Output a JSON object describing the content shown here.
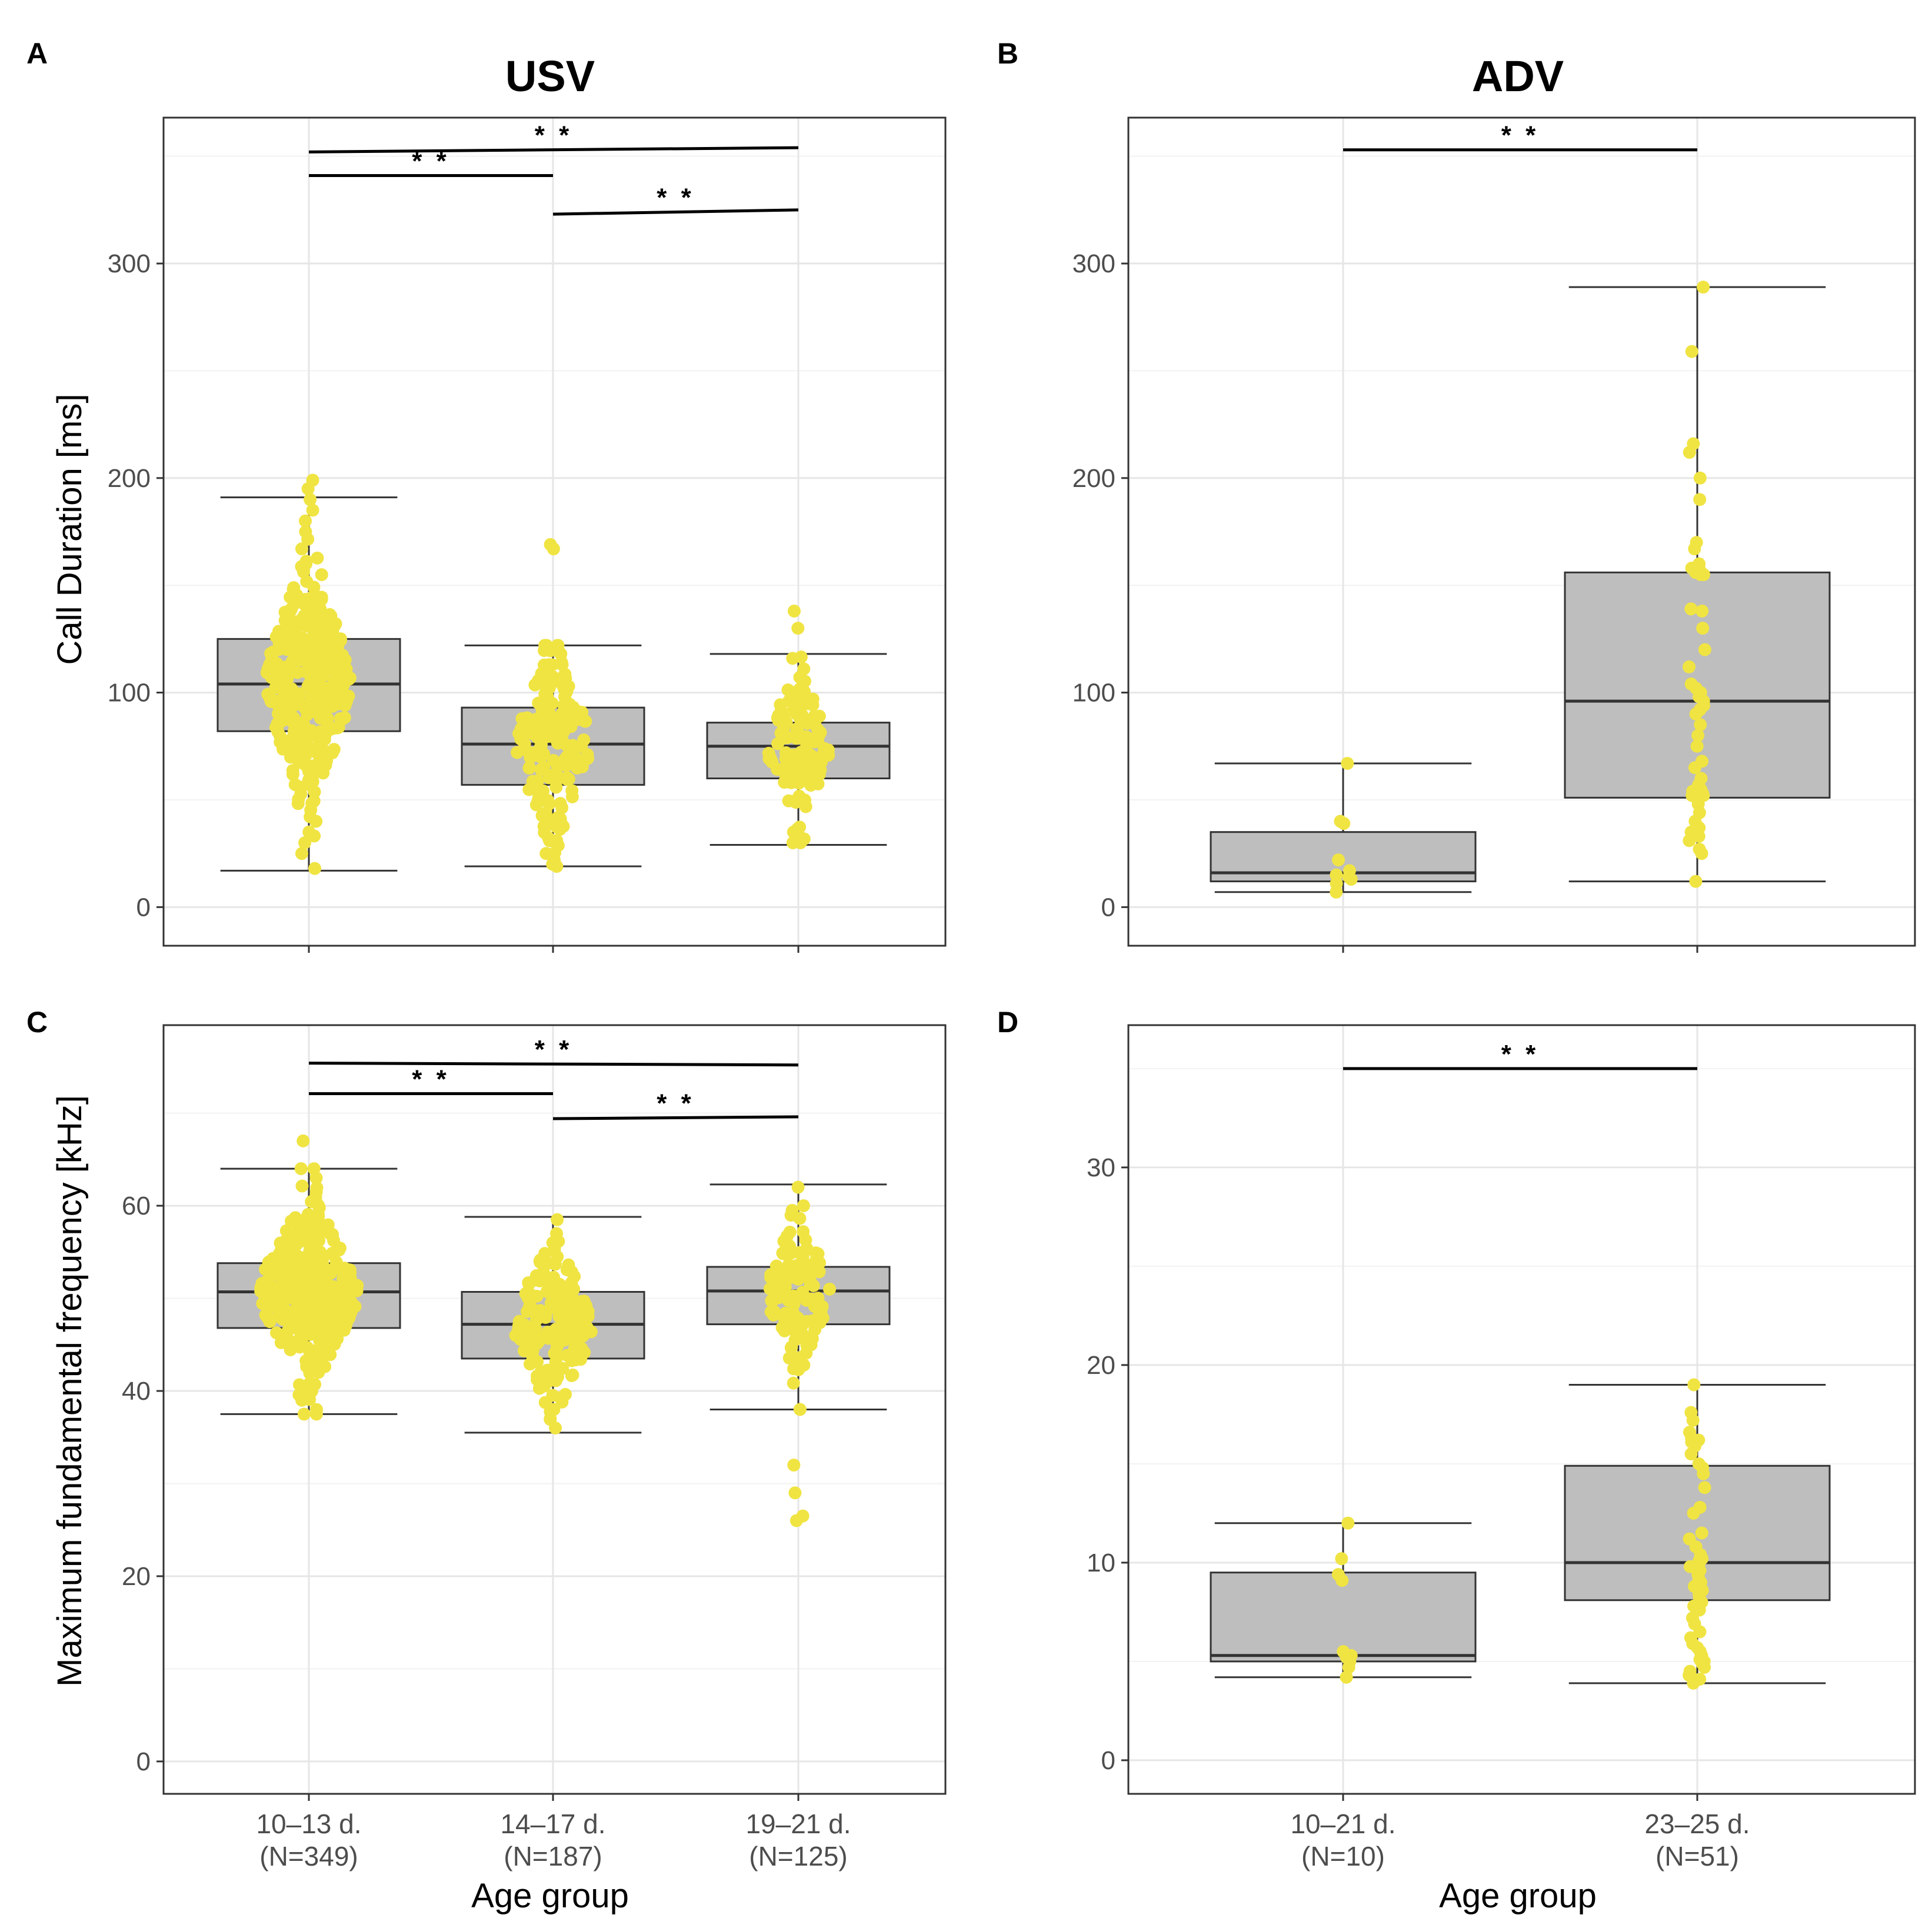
{
  "colors": {
    "points": "#f0e442",
    "box_fill": "#bebebe",
    "outline": "#333333",
    "grid": "#e6e6e6"
  },
  "shared": {
    "x_axis_title": "Age group"
  },
  "chart_data": [
    {
      "panel": "A",
      "title": "USV",
      "type": "boxplot",
      "ylabel": "Call Duration [ms]",
      "ylim": [
        -18,
        368
      ],
      "yticks": [
        0,
        100,
        200,
        300
      ],
      "ytick_labels": [
        "0",
        "100",
        "200",
        "300"
      ],
      "show_x_labels": false,
      "categories": [
        {
          "label": "10–13 d.",
          "n_label": "(N=349)",
          "n": 349,
          "lower_whisker": 17,
          "q1": 82,
          "median": 104,
          "q3": 125,
          "upper_whisker": 191,
          "spread": 0.36,
          "extra_points": [
            199,
            195,
            190,
            185,
            180,
            175,
            167,
            160,
            40,
            35,
            30,
            25,
            18
          ],
          "sd": 27
        },
        {
          "label": "14–17 d.",
          "n_label": "(N=187)",
          "n": 187,
          "lower_whisker": 19,
          "q1": 57,
          "median": 76,
          "q3": 93,
          "upper_whisker": 122,
          "spread": 0.3,
          "extra_points": [
            169,
            167,
            120,
            118,
            20,
            22,
            25
          ],
          "sd": 21
        },
        {
          "label": "19–21 d.",
          "n_label": "(N=125)",
          "n": 125,
          "lower_whisker": 29,
          "q1": 60,
          "median": 75,
          "q3": 86,
          "upper_whisker": 118,
          "spread": 0.26,
          "extra_points": [
            138,
            130,
            32,
            30,
            35
          ],
          "sd": 17
        }
      ],
      "significance": [
        {
          "from": 0,
          "to": 2,
          "y": 352,
          "y_end": 354,
          "label": "* *"
        },
        {
          "from": 0,
          "to": 1,
          "y": 341,
          "y_end": 341,
          "label": "* *"
        },
        {
          "from": 1,
          "to": 2,
          "y": 323,
          "y_end": 325,
          "label": "* *"
        }
      ]
    },
    {
      "panel": "B",
      "title": "ADV",
      "type": "boxplot",
      "ylabel": "",
      "ylim": [
        -18,
        368
      ],
      "yticks": [
        0,
        100,
        200,
        300
      ],
      "ytick_labels": [
        "0",
        "100",
        "200",
        "300"
      ],
      "show_x_labels": false,
      "categories": [
        {
          "label": "10–21 d.",
          "n_label": "(N=10)",
          "n": 10,
          "lower_whisker": 7,
          "q1": 12,
          "median": 16,
          "q3": 35,
          "upper_whisker": 67,
          "spread": 0.0,
          "points": [
            67,
            40,
            39,
            22,
            17,
            15,
            14,
            13,
            11,
            7
          ]
        },
        {
          "label": "23–25 d.",
          "n_label": "(N=51)",
          "n": 51,
          "lower_whisker": 12,
          "q1": 51,
          "median": 96,
          "q3": 156,
          "upper_whisker": 289,
          "spread": 0.0,
          "points": [
            289,
            259,
            216,
            212,
            200,
            190,
            170,
            167,
            160,
            158,
            157,
            157,
            156,
            155,
            155,
            139,
            138,
            130,
            120,
            112,
            104,
            102,
            100,
            98,
            96,
            94,
            92,
            90,
            85,
            80,
            75,
            68,
            65,
            60,
            57,
            55,
            54,
            53,
            52,
            52,
            50,
            48,
            44,
            40,
            37,
            35,
            33,
            31,
            27,
            25,
            12
          ]
        }
      ],
      "significance": [
        {
          "from": 0,
          "to": 1,
          "y": 353,
          "y_end": 353,
          "label": "* *"
        }
      ]
    },
    {
      "panel": "C",
      "title": "",
      "type": "boxplot",
      "ylabel": "Maximum fundamental frequency [kHz]",
      "ylim": [
        -3.5,
        79.5
      ],
      "yticks": [
        0,
        20,
        40,
        60
      ],
      "ytick_labels": [
        "0",
        "20",
        "40",
        "60"
      ],
      "show_x_labels": true,
      "categories": [
        {
          "label": "10–13 d.",
          "n_label": "(N=349)",
          "n": 349,
          "lower_whisker": 37.5,
          "q1": 46.8,
          "median": 50.7,
          "q3": 53.8,
          "upper_whisker": 64,
          "spread": 0.4,
          "extra_points": [
            67,
            64,
            63,
            60,
            59,
            40,
            39,
            38
          ],
          "sd": 4.8
        },
        {
          "label": "14–17 d.",
          "n_label": "(N=187)",
          "n": 187,
          "lower_whisker": 35.5,
          "q1": 43.5,
          "median": 47.2,
          "q3": 50.7,
          "upper_whisker": 58.8,
          "spread": 0.32,
          "extra_points": [
            58.5,
            57,
            56,
            36,
            37,
            38
          ],
          "sd": 4.2
        },
        {
          "label": "19–21 d.",
          "n_label": "(N=125)",
          "n": 125,
          "lower_whisker": 38,
          "q1": 47.2,
          "median": 50.8,
          "q3": 53.4,
          "upper_whisker": 62.3,
          "spread": 0.26,
          "extra_points": [
            62,
            60,
            59.5,
            32,
            29,
            26.5,
            26,
            38
          ],
          "sd": 3.8
        }
      ],
      "significance": [
        {
          "from": 0,
          "to": 2,
          "y": 75.4,
          "y_end": 75.2,
          "label": "* *"
        },
        {
          "from": 0,
          "to": 1,
          "y": 72.1,
          "y_end": 72.1,
          "label": "* *"
        },
        {
          "from": 1,
          "to": 2,
          "y": 69.4,
          "y_end": 69.6,
          "label": "* *"
        }
      ]
    },
    {
      "panel": "D",
      "title": "",
      "type": "boxplot",
      "ylabel": "",
      "ylim": [
        -1.7,
        37.2
      ],
      "yticks": [
        0,
        10,
        20,
        30
      ],
      "ytick_labels": [
        "0",
        "10",
        "20",
        "30"
      ],
      "show_x_labels": true,
      "categories": [
        {
          "label": "10–21 d.",
          "n_label": "(N=10)",
          "n": 10,
          "lower_whisker": 4.2,
          "q1": 5.0,
          "median": 5.3,
          "q3": 9.5,
          "upper_whisker": 12,
          "spread": 0.0,
          "points": [
            12,
            10.2,
            9.4,
            9.1,
            5.5,
            5.3,
            5.2,
            5.0,
            4.7,
            4.2
          ]
        },
        {
          "label": "23–25 d.",
          "n_label": "(N=51)",
          "n": 51,
          "lower_whisker": 3.9,
          "q1": 8.1,
          "median": 10,
          "q3": 14.9,
          "upper_whisker": 19,
          "spread": 0.0,
          "points": [
            19,
            17.6,
            17.2,
            16.6,
            16.3,
            16.2,
            16.1,
            15.9,
            15.5,
            15.0,
            14.8,
            14.5,
            13.8,
            12.8,
            11.5,
            11.2,
            10.8,
            10.4,
            10.2,
            10.1,
            10.0,
            9.9,
            9.8,
            9.6,
            9.4,
            9.2,
            9.0,
            8.8,
            8.6,
            8.4,
            8.2,
            8.0,
            7.8,
            7.6,
            7.2,
            6.9,
            6.5,
            6.2,
            5.9,
            5.7,
            5.5,
            5.3,
            5.1,
            5.0,
            4.9,
            4.7,
            4.5,
            4.3,
            4.1,
            3.9,
            12.5
          ]
        }
      ],
      "significance": [
        {
          "from": 0,
          "to": 1,
          "y": 35.0,
          "y_end": 35.0,
          "label": "* *"
        }
      ]
    }
  ]
}
